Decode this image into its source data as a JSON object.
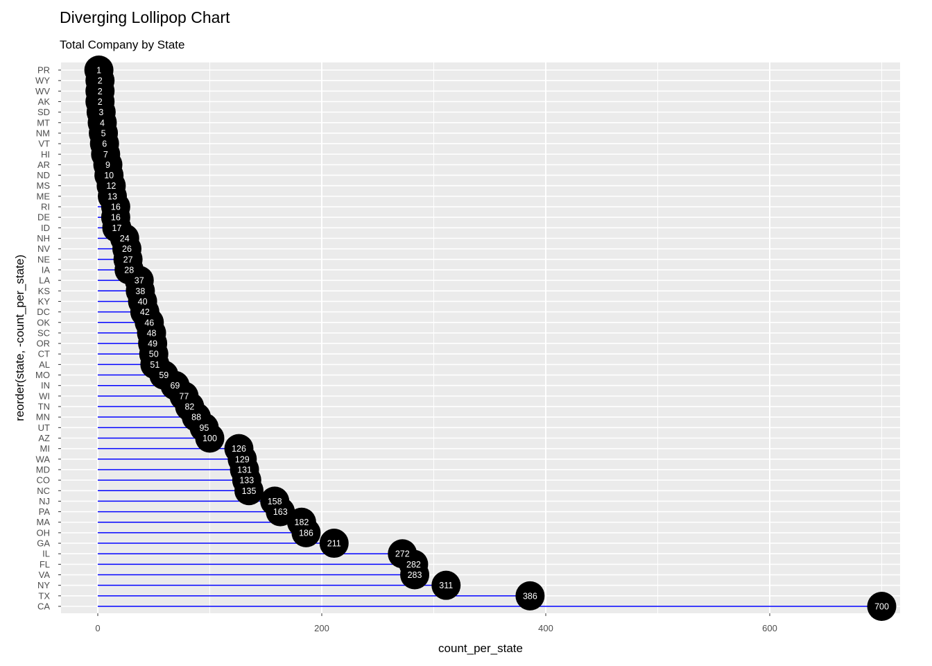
{
  "chart_data": {
    "type": "lollipop",
    "title": "Diverging Lollipop Chart",
    "subtitle": "Total Company by State",
    "xlabel": "count_per_state",
    "ylabel": "reorder(state, -count_per_state)",
    "xlim": [
      -40,
      720
    ],
    "xticks": [
      0,
      200,
      400,
      600
    ],
    "grid": true,
    "colors": {
      "segment": "#0000ff",
      "point": "#000000",
      "label": "#ffffff",
      "panel": "#ebebeb",
      "grid": "#ffffff"
    },
    "categories": [
      "PR",
      "WY",
      "WV",
      "AK",
      "SD",
      "MT",
      "NM",
      "VT",
      "HI",
      "AR",
      "ND",
      "MS",
      "ME",
      "RI",
      "DE",
      "ID",
      "NH",
      "NV",
      "NE",
      "IA",
      "LA",
      "KS",
      "KY",
      "DC",
      "OK",
      "SC",
      "OR",
      "CT",
      "AL",
      "MO",
      "IN",
      "WI",
      "TN",
      "MN",
      "UT",
      "AZ",
      "MI",
      "WA",
      "MD",
      "CO",
      "NC",
      "NJ",
      "PA",
      "MA",
      "OH",
      "GA",
      "IL",
      "FL",
      "VA",
      "NY",
      "TX",
      "CA"
    ],
    "values": [
      1,
      2,
      2,
      2,
      3,
      4,
      5,
      6,
      7,
      9,
      10,
      12,
      13,
      16,
      16,
      17,
      24,
      26,
      27,
      28,
      37,
      38,
      40,
      42,
      46,
      48,
      49,
      50,
      51,
      59,
      69,
      77,
      82,
      88,
      95,
      100,
      126,
      129,
      131,
      133,
      135,
      158,
      163,
      182,
      186,
      211,
      272,
      282,
      283,
      311,
      386,
      700
    ]
  }
}
